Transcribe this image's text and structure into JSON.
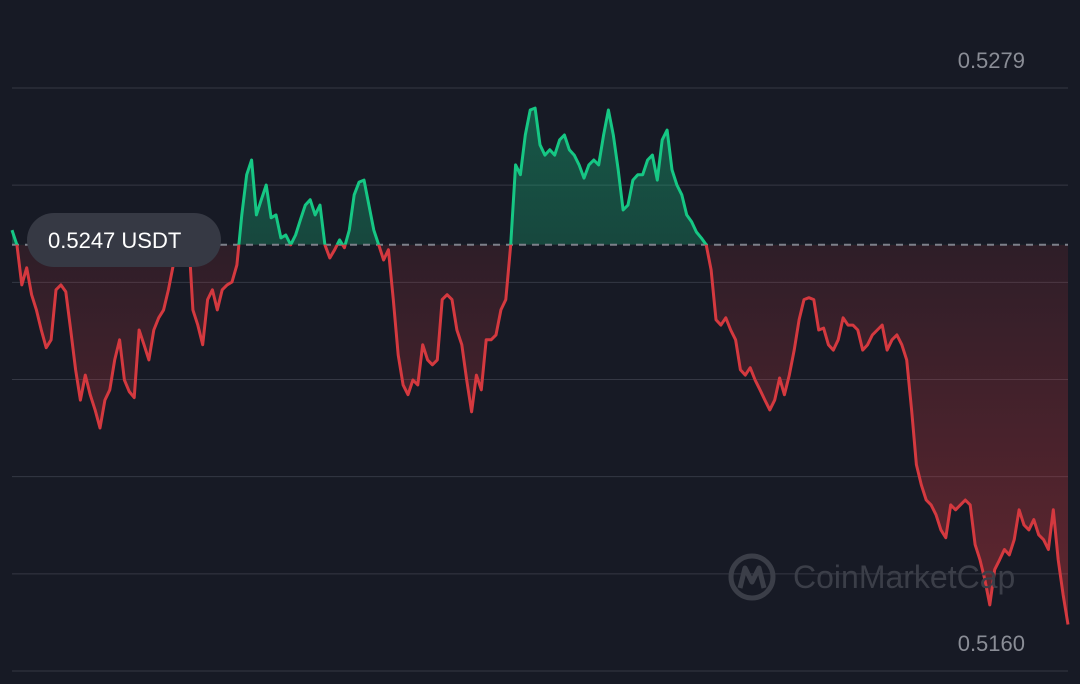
{
  "chart_data": {
    "type": "baseline-line",
    "baseline": {
      "value": 0.5247,
      "label": "0.5247 USDT"
    },
    "up_color": "#16c784",
    "down_color": "#d4393f",
    "ylim": [
      0.516,
      0.5279
    ],
    "yticks": [
      {
        "value": 0.516,
        "label": "0.5160"
      },
      {
        "value": 0.5279,
        "label": "0.5279"
      }
    ],
    "grid": true,
    "watermark": "CoinMarketCap",
    "values": [
      0.525,
      0.5247,
      0.52388,
      0.52423,
      0.52368,
      0.52337,
      0.52296,
      0.5226,
      0.52276,
      0.52378,
      0.52388,
      0.52374,
      0.52296,
      0.52215,
      0.52153,
      0.52204,
      0.52164,
      0.52133,
      0.52096,
      0.52153,
      0.52174,
      0.52235,
      0.52276,
      0.52194,
      0.5217,
      0.52158,
      0.52296,
      0.52266,
      0.52235,
      0.52296,
      0.52321,
      0.52337,
      0.52378,
      0.52429,
      0.5248,
      0.5248,
      0.52508,
      0.52337,
      0.52306,
      0.52266,
      0.52358,
      0.52378,
      0.52337,
      0.52378,
      0.52388,
      0.52394,
      0.52429,
      0.52531,
      0.52613,
      0.52643,
      0.52531,
      0.52562,
      0.52592,
      0.52525,
      0.52531,
      0.52484,
      0.5249,
      0.5247,
      0.5249,
      0.52521,
      0.52551,
      0.52562,
      0.52531,
      0.52551,
      0.5247,
      0.52443,
      0.5246,
      0.5248,
      0.52464,
      0.525,
      0.52572,
      0.52598,
      0.52602,
      0.52551,
      0.525,
      0.5247,
      0.52439,
      0.5246,
      0.52358,
      0.52245,
      0.52184,
      0.52164,
      0.52194,
      0.52184,
      0.52266,
      0.52235,
      0.52225,
      0.52235,
      0.52358,
      0.52368,
      0.52358,
      0.52296,
      0.52266,
      0.52194,
      0.52129,
      0.52204,
      0.52174,
      0.52276,
      0.52276,
      0.52286,
      0.52337,
      0.52358,
      0.5247,
      0.52633,
      0.52613,
      0.52694,
      0.52745,
      0.52749,
      0.52674,
      0.52653,
      0.52664,
      0.52653,
      0.52684,
      0.52694,
      0.52664,
      0.52653,
      0.52633,
      0.52606,
      0.52633,
      0.52643,
      0.52633,
      0.52694,
      0.52745,
      0.52694,
      0.52623,
      0.52541,
      0.52551,
      0.52602,
      0.52613,
      0.52613,
      0.52643,
      0.52653,
      0.52602,
      0.52684,
      0.52704,
      0.52623,
      0.52592,
      0.52572,
      0.52531,
      0.52517,
      0.52496,
      0.52484,
      0.5247,
      0.52419,
      0.52317,
      0.52306,
      0.52321,
      0.52296,
      0.52276,
      0.52215,
      0.52204,
      0.52219,
      0.52194,
      0.52174,
      0.52153,
      0.52133,
      0.52153,
      0.52198,
      0.52164,
      0.52204,
      0.52255,
      0.52317,
      0.52358,
      0.52362,
      0.52358,
      0.52296,
      0.523,
      0.52266,
      0.52255,
      0.52276,
      0.52321,
      0.52306,
      0.52306,
      0.52296,
      0.52255,
      0.52266,
      0.52286,
      0.52296,
      0.52306,
      0.52255,
      0.52276,
      0.52286,
      0.52266,
      0.52235,
      0.52133,
      0.52021,
      0.5198,
      0.51949,
      0.51939,
      0.51919,
      0.51888,
      0.51872,
      0.51939,
      0.51929,
      0.51939,
      0.51949,
      0.51939,
      0.51858,
      0.51827,
      0.51786,
      0.51735,
      0.51807,
      0.51827,
      0.51848,
      0.51837,
      0.51868,
      0.51929,
      0.51898,
      0.51888,
      0.51909,
      0.51878,
      0.51868,
      0.51848,
      0.51929,
      0.51827,
      0.51756,
      0.51695
    ]
  }
}
